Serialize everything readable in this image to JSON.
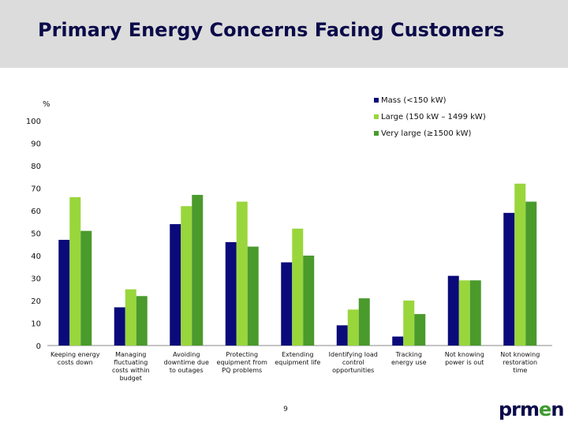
{
  "header": {
    "title": "Primary Energy Concerns Facing Customers"
  },
  "footer": {
    "page_number": "9",
    "logo": {
      "part1": "prm",
      "part2": "e",
      "part3": "n"
    }
  },
  "chart_data": {
    "type": "bar",
    "title": "Primary Energy Concerns Facing Customers",
    "ylabel": "%",
    "xlabel": "",
    "ylim": [
      0,
      100
    ],
    "yticks": [
      0,
      10,
      20,
      30,
      40,
      50,
      60,
      70,
      80,
      90,
      100
    ],
    "grid": false,
    "legend_position": "top-right",
    "categories": [
      [
        "Keeping energy",
        "costs down"
      ],
      [
        "Managing",
        "fluctuating",
        "costs within",
        "budget"
      ],
      [
        "Avoiding",
        "downtime due",
        "to outages"
      ],
      [
        "Protecting",
        "equipment from",
        "PQ problems"
      ],
      [
        "Extending",
        "equipment life"
      ],
      [
        "Identifying load",
        "control",
        "opportunities"
      ],
      [
        "Tracking",
        "energy use"
      ],
      [
        "Not knowing",
        "power is out"
      ],
      [
        "Not knowing",
        "restoration",
        "time"
      ]
    ],
    "series": [
      {
        "name": "Mass (<150 kW)",
        "color": "#0a0a7a",
        "values": [
          47,
          17,
          54,
          46,
          37,
          9,
          4,
          31,
          59
        ]
      },
      {
        "name": "Large (150 kW – 1499 kW)",
        "color": "#99d63c",
        "values": [
          66,
          25,
          62,
          64,
          52,
          16,
          20,
          29,
          72
        ]
      },
      {
        "name": "Very large (≥1500 kW)",
        "color": "#4a9a2c",
        "values": [
          51,
          22,
          67,
          44,
          40,
          21,
          14,
          29,
          64
        ]
      }
    ]
  }
}
